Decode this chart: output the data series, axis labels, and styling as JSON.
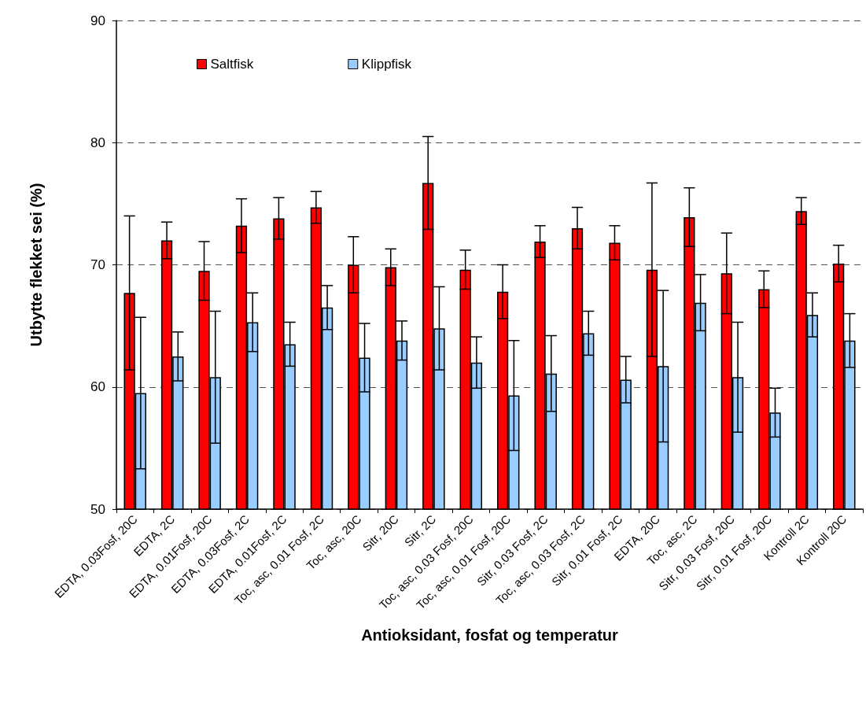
{
  "chart_data": {
    "type": "bar",
    "xlabel": "Antioksidant, fosfat og temperatur",
    "ylabel": "Utbytte flekket sei (%)",
    "categories": [
      "EDTA, 0.03Fosf, 20C",
      "EDTA, 2C",
      "EDTA, 0.01Fosf, 20C",
      "EDTA, 0.03Fosf, 2C",
      "EDTA, 0.01Fosf, 2C",
      "Toc, asc, 0.01 Fosf, 2C",
      "Toc, asc, 20C",
      "Sitr, 20C",
      "Sitr, 2C",
      "Toc, asc, 0.03 Fosf, 20C",
      "Toc, asc, 0.01 Fosf, 20C",
      "Sitr, 0.03 Fosf, 2C",
      "Toc, asc, 0.03 Fosf, 2C",
      "Sitr, 0.01 Fosf, 2C",
      "EDTA, 20C",
      "Toc, asc, 2C",
      "Sitr, 0.03 Fosf, 20C",
      "Sitr, 0.01 Fosf, 20C",
      "Kontroll 2C",
      "Kontroll 20C"
    ],
    "series": [
      {
        "name": "Saltfisk",
        "color": "#ff0000",
        "values": [
          67.7,
          72.0,
          69.5,
          73.2,
          73.8,
          74.7,
          70.0,
          69.8,
          76.7,
          69.6,
          67.8,
          71.9,
          73.0,
          71.8,
          69.6,
          73.9,
          69.3,
          68.0,
          74.4,
          70.1
        ],
        "errors": [
          6.3,
          1.5,
          2.4,
          2.2,
          1.7,
          1.3,
          2.3,
          1.5,
          3.8,
          1.6,
          2.2,
          1.3,
          1.7,
          1.4,
          7.1,
          2.4,
          3.3,
          1.5,
          1.1,
          1.5
        ]
      },
      {
        "name": "Klippfisk",
        "color": "#99ccff",
        "values": [
          59.5,
          62.5,
          60.8,
          65.3,
          63.5,
          66.5,
          62.4,
          63.8,
          64.8,
          62.0,
          59.3,
          61.1,
          64.4,
          60.6,
          61.7,
          66.9,
          60.8,
          57.9,
          65.9,
          63.8
        ],
        "errors": [
          6.2,
          2.0,
          5.4,
          2.4,
          1.8,
          1.8,
          2.8,
          1.6,
          3.4,
          2.1,
          4.5,
          3.1,
          1.8,
          1.9,
          6.2,
          2.3,
          4.5,
          2.0,
          1.8,
          2.2
        ]
      }
    ],
    "ylim": [
      50,
      90
    ],
    "yticks": [
      50,
      60,
      70,
      80,
      90
    ],
    "grid": "y",
    "legend": "top left"
  }
}
